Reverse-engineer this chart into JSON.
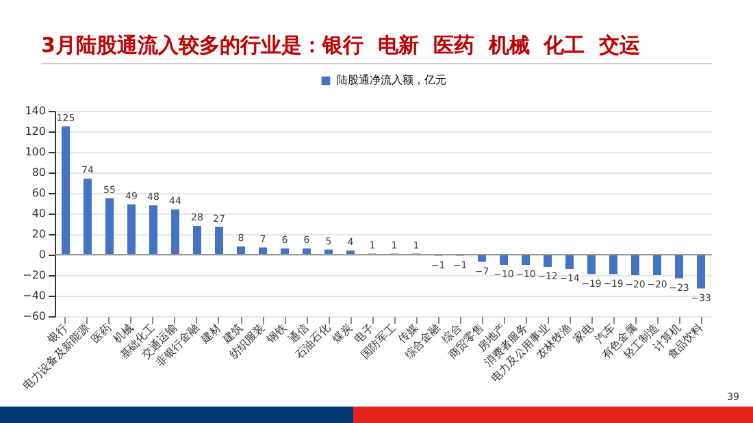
{
  "chart_data": {
    "type": "bar",
    "title": "3月陆股通流入较多的行业是：银行  电新  医药  机械  化工  交运",
    "categories": [
      "银行",
      "电力设备及新能源",
      "医药",
      "机械",
      "基础化工",
      "交通运输",
      "非银行金融",
      "建材",
      "建筑",
      "纺织服装",
      "钢铁",
      "通信",
      "石油石化",
      "煤炭",
      "电子",
      "国防军工",
      "传媒",
      "综合金融",
      "综合",
      "商贸零售",
      "房地产",
      "消费者服务",
      "电力及公用事业",
      "农林牧渔",
      "家电",
      "汽车",
      "有色金属",
      "轻工制造",
      "计算机",
      "食品饮料"
    ],
    "series": [
      {
        "name": "陆股通净流入额，亿元",
        "color": "#4472c4",
        "values": [
          125,
          74,
          55,
          49,
          48,
          44,
          28,
          27,
          8,
          7,
          6,
          6,
          5,
          4,
          1,
          1,
          1,
          -1,
          -1,
          -7,
          -10,
          -10,
          -12,
          -14,
          -19,
          -19,
          -20,
          -20,
          -23,
          -33
        ]
      }
    ],
    "ylim": [
      -60,
      140
    ],
    "yticks": [
      -60,
      -40,
      -20,
      0,
      20,
      40,
      60,
      80,
      100,
      120,
      140
    ],
    "grid": "y",
    "legend": "top",
    "data_labels": true,
    "annotations": [
      "39"
    ]
  }
}
